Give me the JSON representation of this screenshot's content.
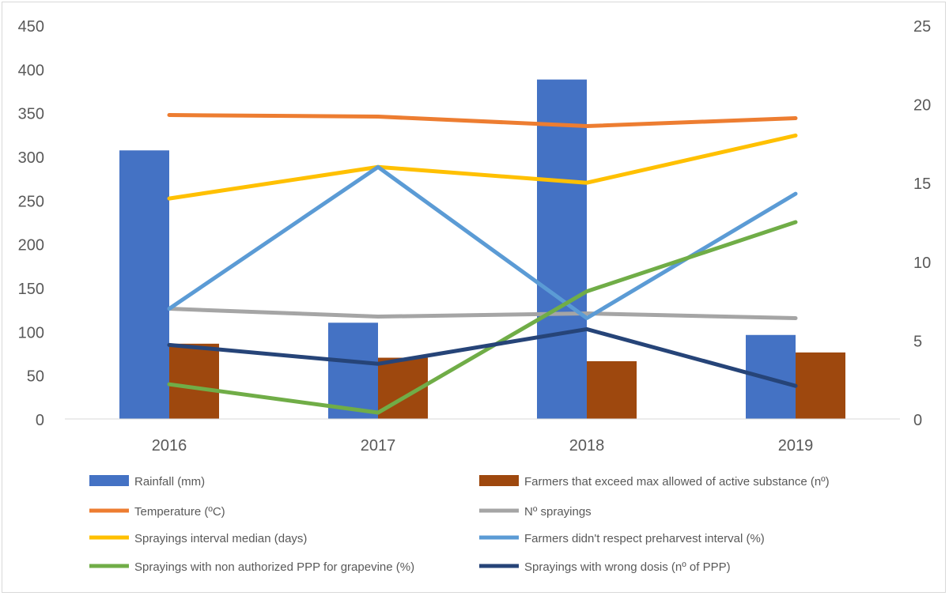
{
  "chart_data": {
    "type": "bar+line",
    "categories": [
      "2016",
      "2017",
      "2018",
      "2019"
    ],
    "left_axis": {
      "min": 0,
      "max": 450,
      "step": 50,
      "ticks": [
        "0",
        "50",
        "100",
        "150",
        "200",
        "250",
        "300",
        "350",
        "400",
        "450"
      ]
    },
    "right_axis": {
      "min": 0,
      "max": 25,
      "step": 5,
      "ticks": [
        "0",
        "5",
        "10",
        "15",
        "20",
        "25"
      ]
    },
    "bar_series": [
      {
        "name": "Rainfall (mm)",
        "axis": "left",
        "color": "#4472c4",
        "values": [
          307,
          110,
          388,
          96
        ]
      },
      {
        "name": "Farmers that exceed max allowed of active substance (nº)",
        "axis": "left",
        "color": "#9e480e",
        "values": [
          86,
          70,
          66,
          76
        ]
      }
    ],
    "line_series": [
      {
        "name": "Temperature (ºC)",
        "axis": "right",
        "color": "#ed7d31",
        "values": [
          19.3,
          19.2,
          18.6,
          19.1
        ]
      },
      {
        "name": "Nº sprayings",
        "axis": "right",
        "color": "#a5a5a5",
        "values": [
          7.0,
          6.5,
          6.7,
          6.4
        ]
      },
      {
        "name": "Sprayings interval median (days)",
        "axis": "right",
        "color": "#ffc000",
        "values": [
          14.0,
          16.0,
          15.0,
          18.0
        ]
      },
      {
        "name": "Farmers didn't respect preharvest interval (%)",
        "axis": "right",
        "color": "#5b9bd5",
        "values": [
          7.0,
          16.0,
          6.4,
          14.3
        ]
      },
      {
        "name": "Sprayings with non authorized PPP for grapevine (%)",
        "axis": "right",
        "color": "#70ad47",
        "values": [
          2.2,
          0.4,
          8.1,
          12.5
        ]
      },
      {
        "name": "Sprayings with wrong dosis (nº of PPP)",
        "axis": "right",
        "color": "#264478",
        "values": [
          4.7,
          3.5,
          5.7,
          2.1
        ]
      }
    ],
    "legend_order": [
      "Rainfall (mm)",
      "Farmers that exceed max allowed of active substance (nº)",
      "Temperature (ºC)",
      "Nº sprayings",
      "Sprayings interval median (days)",
      "Farmers didn't respect preharvest interval (%)",
      "Sprayings with non authorized PPP for grapevine (%)",
      "Sprayings with wrong dosis (nº of PPP)"
    ],
    "legend_position": "bottom",
    "grid": false
  }
}
